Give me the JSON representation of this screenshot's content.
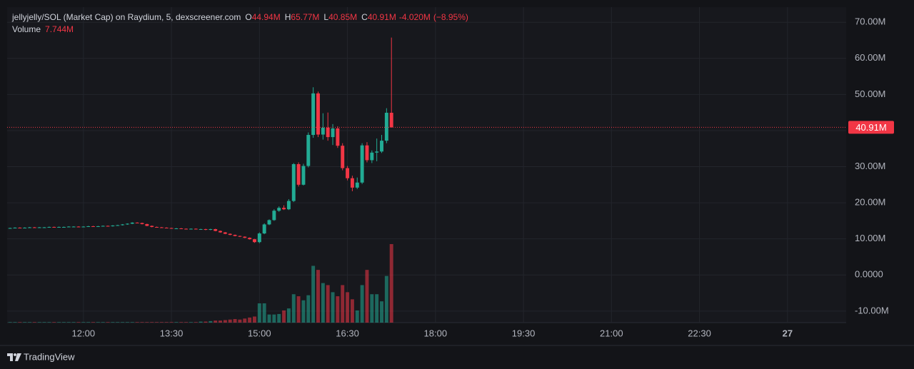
{
  "chart_data": {
    "type": "candlestick",
    "title": "jellyjelly/SOL (Market Cap) on Raydium, 5, dexscreener.com",
    "x": [
      "10:45",
      "10:50",
      "10:55",
      "11:00",
      "11:05",
      "11:10",
      "11:15",
      "11:20",
      "11:25",
      "11:30",
      "11:35",
      "11:40",
      "11:45",
      "11:50",
      "11:55",
      "12:00",
      "12:05",
      "12:10",
      "12:15",
      "12:20",
      "12:25",
      "12:30",
      "12:35",
      "12:40",
      "12:45",
      "12:50",
      "12:55",
      "13:00",
      "13:05",
      "13:10",
      "13:15",
      "13:20",
      "13:25",
      "13:30",
      "13:35",
      "13:40",
      "13:45",
      "13:50",
      "13:55",
      "14:00",
      "14:05",
      "14:10",
      "14:15",
      "14:20",
      "14:25",
      "14:30",
      "14:35",
      "14:40",
      "14:45",
      "14:50",
      "14:55",
      "15:00",
      "15:05",
      "15:10",
      "15:15",
      "15:20",
      "15:25",
      "15:30",
      "15:35",
      "15:40",
      "15:45",
      "15:50",
      "15:55",
      "16:00",
      "16:05",
      "16:10",
      "16:15",
      "16:20",
      "16:25",
      "16:30",
      "16:35",
      "16:40",
      "16:45",
      "16:50",
      "16:55",
      "17:00",
      "17:05",
      "17:10",
      "17:15"
    ],
    "open": [
      12.9,
      13.0,
      13.1,
      13.0,
      13.1,
      13.2,
      13.1,
      13.2,
      13.2,
      13.3,
      13.2,
      13.3,
      13.3,
      13.4,
      13.4,
      13.3,
      13.4,
      13.5,
      13.4,
      13.5,
      13.6,
      13.5,
      13.7,
      13.8,
      14.0,
      14.2,
      14.5,
      14.4,
      14.1,
      13.6,
      13.3,
      13.2,
      13.1,
      13.0,
      12.9,
      12.9,
      12.8,
      12.7,
      12.8,
      12.7,
      12.7,
      12.5,
      12.7,
      12.2,
      11.8,
      11.4,
      11.1,
      10.8,
      10.6,
      10.3,
      9.9,
      9.1,
      11.5,
      14.0,
      15.2,
      17.8,
      18.6,
      18.2,
      20.5,
      30.7,
      25.0,
      30.2,
      38.8,
      50.3,
      38.9,
      40.8,
      38.2,
      40.6,
      35.8,
      29.6,
      26.8,
      24.2,
      25.6,
      35.9,
      31.8,
      33.9,
      34.2,
      37.2,
      44.94
    ],
    "high": [
      13.1,
      13.2,
      13.2,
      13.2,
      13.3,
      13.3,
      13.3,
      13.3,
      13.4,
      13.4,
      13.4,
      13.4,
      13.5,
      13.5,
      13.5,
      13.5,
      13.6,
      13.6,
      13.6,
      13.7,
      13.7,
      13.8,
      13.9,
      14.1,
      14.3,
      14.6,
      14.6,
      14.5,
      14.2,
      13.7,
      13.4,
      13.3,
      13.2,
      13.1,
      13.0,
      13.0,
      12.9,
      12.9,
      12.9,
      12.8,
      12.8,
      12.8,
      12.8,
      12.3,
      11.9,
      11.5,
      11.2,
      10.9,
      10.7,
      10.4,
      10.0,
      11.8,
      14.3,
      15.4,
      18.2,
      19.0,
      19.3,
      21.0,
      31.0,
      31.2,
      30.8,
      39.5,
      52.0,
      50.8,
      44.8,
      45.0,
      41.8,
      41.2,
      36.5,
      30.2,
      27.5,
      27.0,
      36.5,
      36.8,
      34.5,
      37.8,
      38.8,
      46.2,
      65.77
    ],
    "low": [
      12.8,
      12.9,
      12.9,
      12.9,
      13.0,
      13.0,
      13.0,
      13.1,
      13.1,
      13.1,
      13.1,
      13.2,
      13.2,
      13.3,
      13.2,
      13.2,
      13.3,
      13.3,
      13.3,
      13.4,
      13.4,
      13.4,
      13.6,
      13.7,
      13.9,
      14.1,
      14.3,
      14.0,
      13.5,
      13.2,
      13.1,
      13.0,
      12.9,
      12.8,
      12.8,
      12.7,
      12.6,
      12.6,
      12.6,
      12.6,
      12.4,
      12.4,
      12.1,
      11.7,
      11.3,
      11.0,
      10.7,
      10.5,
      10.2,
      9.8,
      8.9,
      8.8,
      11.3,
      13.8,
      15.0,
      17.5,
      18.0,
      18.0,
      20.2,
      24.5,
      24.8,
      29.8,
      38.0,
      38.2,
      37.5,
      37.2,
      36.0,
      35.2,
      29.0,
      26.2,
      23.2,
      23.8,
      25.2,
      31.2,
      31.0,
      31.5,
      33.8,
      36.5,
      40.85
    ],
    "close": [
      13.0,
      13.1,
      13.0,
      13.1,
      13.2,
      13.1,
      13.2,
      13.2,
      13.3,
      13.2,
      13.3,
      13.3,
      13.4,
      13.4,
      13.3,
      13.4,
      13.5,
      13.4,
      13.5,
      13.6,
      13.5,
      13.7,
      13.8,
      14.0,
      14.2,
      14.5,
      14.4,
      14.1,
      13.6,
      13.3,
      13.2,
      13.1,
      13.0,
      12.9,
      12.9,
      12.8,
      12.7,
      12.8,
      12.7,
      12.7,
      12.5,
      12.7,
      12.2,
      11.8,
      11.4,
      11.1,
      10.8,
      10.6,
      10.3,
      9.9,
      9.1,
      11.5,
      14.0,
      15.2,
      17.8,
      18.6,
      18.2,
      20.5,
      30.7,
      25.0,
      30.2,
      38.8,
      50.3,
      38.9,
      40.8,
      38.2,
      40.6,
      35.8,
      29.6,
      26.8,
      24.2,
      25.6,
      35.9,
      31.8,
      33.9,
      34.2,
      37.2,
      44.94,
      40.91
    ],
    "legend": {
      "open": {
        "name": "O",
        "value": 44.94,
        "label": "44.94M"
      },
      "high": {
        "name": "H",
        "value": 65.77,
        "label": "65.77M"
      },
      "low": {
        "name": "L",
        "value": 40.85,
        "label": "40.85M"
      },
      "close": {
        "name": "C",
        "value": 40.91,
        "label": "40.91M"
      },
      "change": {
        "value": -4.02,
        "label": "-4.020M"
      },
      "change_percent": {
        "value": -8.95,
        "label": "(−8.95%)"
      }
    },
    "volume": {
      "name": "Volume",
      "value_label": "7.744M",
      "values": [
        0.05,
        0.05,
        0.05,
        0.05,
        0.05,
        0.05,
        0.05,
        0.05,
        0.05,
        0.05,
        0.05,
        0.05,
        0.05,
        0.05,
        0.05,
        0.05,
        0.05,
        0.05,
        0.05,
        0.05,
        0.05,
        0.05,
        0.05,
        0.05,
        0.05,
        0.05,
        0.05,
        0.05,
        0.05,
        0.05,
        0.05,
        0.05,
        0.05,
        0.05,
        0.05,
        0.05,
        0.05,
        0.05,
        0.05,
        0.1,
        0.1,
        0.15,
        0.2,
        0.2,
        0.25,
        0.3,
        0.35,
        0.3,
        0.4,
        0.5,
        0.6,
        1.9,
        1.9,
        0.8,
        0.8,
        0.85,
        1.2,
        1.4,
        2.8,
        2.6,
        2.2,
        2.7,
        5.6,
        5.2,
        3.9,
        3.7,
        3.0,
        2.6,
        3.7,
        3.0,
        2.3,
        1.2,
        3.7,
        5.2,
        2.8,
        2.8,
        2.1,
        4.6,
        7.744
      ]
    },
    "up_color": "#22ab94",
    "down_color": "#f23645",
    "ylim": [
      -13.2,
      74.2
    ],
    "yticks": [
      {
        "value": 70,
        "label": "70.00M"
      },
      {
        "value": 60,
        "label": "60.00M"
      },
      {
        "value": 50,
        "label": "50.00M"
      },
      {
        "value": 40,
        "label": "40.00M"
      },
      {
        "value": 30,
        "label": "30.00M"
      },
      {
        "value": 20,
        "label": "20.00M"
      },
      {
        "value": 10,
        "label": "10.00M"
      },
      {
        "value": 0,
        "label": "0.0000"
      },
      {
        "value": -10,
        "label": "-10.00M"
      }
    ],
    "xlim": [
      "10:42",
      "01:00"
    ],
    "xticks": [
      "12:00",
      "13:30",
      "15:00",
      "16:30",
      "18:00",
      "19:30",
      "21:00",
      "22:30",
      "27"
    ],
    "grid": true,
    "last_price_line": true
  },
  "attribution": "TradingView"
}
